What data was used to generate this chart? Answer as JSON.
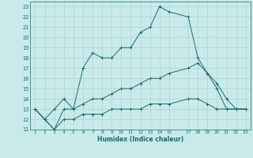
{
  "title": "",
  "xlabel": "Humidex (Indice chaleur)",
  "bg_color": "#c8eaea",
  "grid_color": "#aed4d4",
  "line_color": "#1a6b6b",
  "xlim": [
    0.5,
    23.5
  ],
  "ylim": [
    11,
    23.5
  ],
  "xticks": [
    1,
    2,
    3,
    4,
    5,
    6,
    7,
    8,
    9,
    10,
    11,
    12,
    13,
    14,
    15,
    17,
    18,
    19,
    20,
    21,
    22,
    23
  ],
  "yticks": [
    11,
    12,
    13,
    14,
    15,
    16,
    17,
    18,
    19,
    20,
    21,
    22,
    23
  ],
  "series": [
    {
      "x": [
        1,
        2,
        3,
        4,
        5,
        6,
        7,
        8,
        9,
        10,
        11,
        12,
        13,
        14,
        15,
        17,
        18,
        19,
        20,
        21,
        22,
        23
      ],
      "y": [
        13,
        12,
        13,
        14,
        13,
        17,
        18.5,
        18,
        18,
        19,
        19,
        20.5,
        21,
        23,
        22.5,
        22,
        18,
        16.5,
        15,
        13,
        13,
        13
      ]
    },
    {
      "x": [
        1,
        2,
        3,
        4,
        5,
        6,
        7,
        8,
        9,
        10,
        11,
        12,
        13,
        14,
        15,
        17,
        18,
        19,
        20,
        21,
        22,
        23
      ],
      "y": [
        13,
        12,
        11,
        13,
        13,
        13.5,
        14,
        14,
        14.5,
        15,
        15,
        15.5,
        16,
        16,
        16.5,
        17,
        17.5,
        16.5,
        15.5,
        14,
        13,
        13
      ]
    },
    {
      "x": [
        1,
        2,
        3,
        4,
        5,
        6,
        7,
        8,
        9,
        10,
        11,
        12,
        13,
        14,
        15,
        17,
        18,
        19,
        20,
        21,
        22,
        23
      ],
      "y": [
        13,
        12,
        11,
        12,
        12,
        12.5,
        12.5,
        12.5,
        13,
        13,
        13,
        13,
        13.5,
        13.5,
        13.5,
        14,
        14,
        13.5,
        13,
        13,
        13,
        13
      ]
    }
  ]
}
